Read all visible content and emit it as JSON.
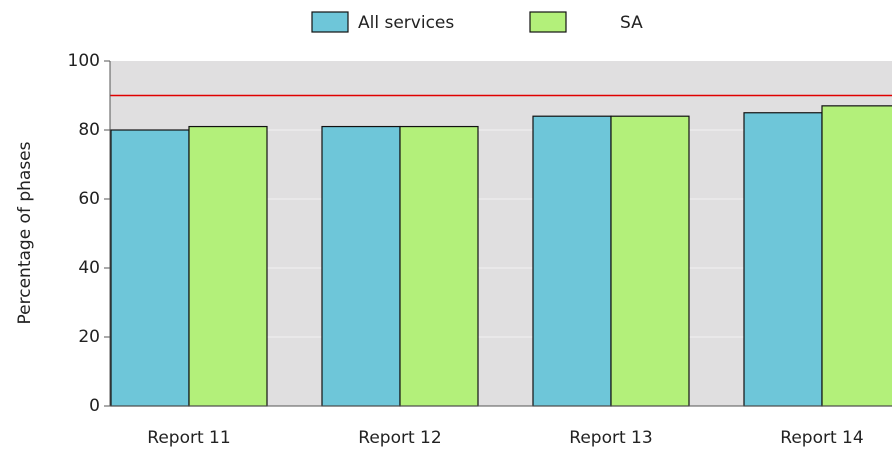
{
  "chart_data": {
    "type": "bar",
    "categories": [
      "Report 11",
      "Report 12",
      "Report 13",
      "Report 14"
    ],
    "series": [
      {
        "name": "All services",
        "color": "#6ec6d9",
        "values": [
          80,
          81,
          84,
          85
        ]
      },
      {
        "name": "SA",
        "color": "#b3f07a",
        "values": [
          81,
          81,
          84,
          87
        ]
      }
    ],
    "ylabel": "Percentage of phases",
    "ylim": [
      0,
      100
    ],
    "yticks": [
      0,
      20,
      40,
      60,
      80,
      100
    ],
    "reference_line": {
      "value": 90,
      "color": "#e00000"
    },
    "grid": true,
    "legend": "top"
  }
}
